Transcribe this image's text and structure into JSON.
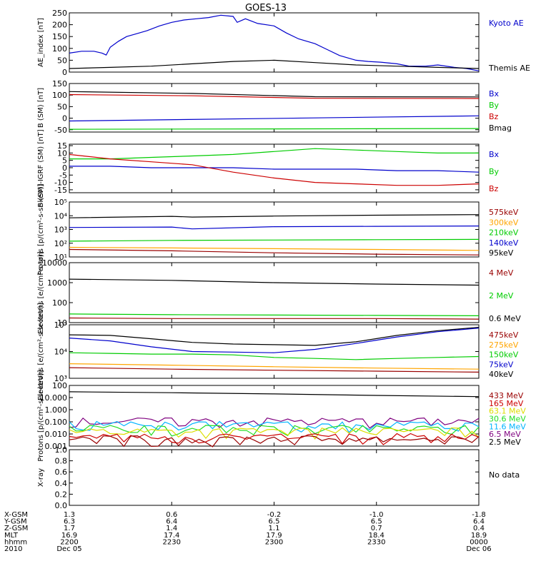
{
  "title": "GOES-13",
  "x_axis": {
    "tick_labels_bottom_row": [
      "Dec 05",
      "",
      "",
      "",
      "Dec 06"
    ],
    "rows": [
      {
        "label": "X-GSM",
        "values": [
          "1.3",
          "0.6",
          "-0.2",
          "-1.0",
          "-1.8"
        ]
      },
      {
        "label": "Y-GSM",
        "values": [
          "6.3",
          "6.4",
          "6.5",
          "6.5",
          "6.4"
        ]
      },
      {
        "label": "Z-GSM",
        "values": [
          "1.7",
          "1.4",
          "1.1",
          "0.7",
          "0.4"
        ]
      },
      {
        "label": "MLT",
        "values": [
          "16.9",
          "17.4",
          "17.9",
          "18.4",
          "18.9"
        ]
      },
      {
        "label": "hhmm",
        "values": [
          "2200",
          "2230",
          "2300",
          "2330",
          "0000"
        ]
      },
      {
        "label": "2010",
        "values": [
          "Dec 05",
          "",
          "",
          "",
          "Dec 06"
        ]
      }
    ]
  },
  "colors": {
    "black": "#000000",
    "blue": "#0000cc",
    "red": "#cc0000",
    "green": "#00cc00",
    "orange": "#ffa500",
    "darkred": "#990000",
    "cyan": "#00b4ff",
    "purple": "#7f007f",
    "yellow": "#dddd00",
    "lime": "#22dd22"
  },
  "chart_data": [
    {
      "type": "line",
      "ylabel": "AE_index [nT]",
      "ylim": [
        0,
        250
      ],
      "yticks": [
        "0",
        "50",
        "100",
        "150",
        "200",
        "250"
      ],
      "legend": [
        {
          "name": "Kyoto AE",
          "color": "#0000cc"
        },
        {
          "name": "Themis AE",
          "color": "#000000"
        }
      ],
      "series": [
        {
          "name": "Kyoto AE",
          "color": "#0000cc",
          "x": [
            0,
            3,
            6,
            8,
            9,
            10,
            12,
            14,
            16,
            19,
            22,
            25,
            28,
            31,
            34,
            37,
            40,
            41,
            43,
            46,
            50,
            53,
            56,
            60,
            63,
            66,
            70,
            73,
            76,
            80,
            83,
            87,
            90,
            94,
            97,
            100
          ],
          "y": [
            80,
            88,
            88,
            80,
            72,
            105,
            130,
            150,
            160,
            175,
            195,
            210,
            220,
            225,
            230,
            240,
            235,
            210,
            225,
            205,
            195,
            165,
            140,
            120,
            95,
            70,
            50,
            45,
            42,
            35,
            25,
            25,
            30,
            20,
            15,
            5
          ]
        },
        {
          "name": "Themis AE",
          "color": "#000000",
          "x": [
            0,
            10,
            20,
            30,
            40,
            50,
            60,
            70,
            80,
            90,
            100
          ],
          "y": [
            15,
            20,
            25,
            35,
            45,
            50,
            40,
            30,
            25,
            20,
            15
          ]
        }
      ]
    },
    {
      "type": "line",
      "ylabel": "B (SM) [nT]",
      "ylim": [
        -60,
        150
      ],
      "yticks": [
        "-50",
        "0",
        "50",
        "100",
        "150"
      ],
      "legend": [
        {
          "name": "Bx",
          "color": "#0000cc"
        },
        {
          "name": "By",
          "color": "#00cc00"
        },
        {
          "name": "Bz",
          "color": "#cc0000"
        },
        {
          "name": "Bmag",
          "color": "#000000"
        }
      ],
      "series": [
        {
          "name": "Bx",
          "color": "#0000cc",
          "x": [
            0,
            100
          ],
          "y": [
            -12,
            10
          ]
        },
        {
          "name": "By",
          "color": "#00cc00",
          "x": [
            0,
            100
          ],
          "y": [
            -48,
            -45
          ]
        },
        {
          "name": "Bz",
          "color": "#cc0000",
          "x": [
            0,
            30,
            60,
            100
          ],
          "y": [
            102,
            97,
            86,
            85
          ]
        },
        {
          "name": "Bmag",
          "color": "#000000",
          "x": [
            0,
            30,
            60,
            100
          ],
          "y": [
            115,
            107,
            93,
            92
          ]
        }
      ]
    },
    {
      "type": "line",
      "ylabel": "B (SM)-IGRF (SM) [nT]",
      "ylim": [
        -17,
        16
      ],
      "yticks": [
        "-15",
        "-10",
        "-5",
        "0",
        "5",
        "10",
        "15"
      ],
      "legend": [
        {
          "name": "Bx",
          "color": "#0000cc"
        },
        {
          "name": "By",
          "color": "#00cc00"
        },
        {
          "name": "Bz",
          "color": "#cc0000"
        }
      ],
      "series": [
        {
          "name": "Bx",
          "color": "#0000cc",
          "x": [
            0,
            10,
            20,
            30,
            40,
            50,
            60,
            70,
            80,
            90,
            100
          ],
          "y": [
            1,
            1,
            0,
            0,
            0,
            -1,
            -1,
            -1,
            -2,
            -2,
            -3
          ]
        },
        {
          "name": "By",
          "color": "#00cc00",
          "x": [
            0,
            10,
            20,
            30,
            40,
            50,
            60,
            70,
            80,
            90,
            100
          ],
          "y": [
            6,
            6,
            7,
            8,
            9,
            11,
            13,
            12,
            11,
            10,
            10
          ]
        },
        {
          "name": "Bz",
          "color": "#cc0000",
          "x": [
            0,
            10,
            20,
            30,
            40,
            50,
            60,
            70,
            80,
            90,
            100
          ],
          "y": [
            9,
            6,
            4,
            2,
            -3,
            -7,
            -10,
            -11,
            -12,
            -12,
            -11
          ]
        }
      ]
    },
    {
      "type": "line",
      "ylabel": "Protons [p/(cm²-s-sr-keV)]",
      "scale": "log",
      "ylim": [
        10,
        100000
      ],
      "yticks": [
        "10¹",
        "10²",
        "10³",
        "10⁴",
        "10⁵"
      ],
      "legend": [
        {
          "name": "575keV",
          "color": "#990000"
        },
        {
          "name": "300keV",
          "color": "#ffa500"
        },
        {
          "name": "210keV",
          "color": "#00cc00"
        },
        {
          "name": "140keV",
          "color": "#0000cc"
        },
        {
          "name": "95keV",
          "color": "#000000"
        }
      ],
      "series": [
        {
          "name": "95keV",
          "color": "#000000",
          "x": [
            0,
            25,
            30,
            50,
            75,
            100
          ],
          "y": [
            7000,
            9000,
            8000,
            9500,
            11000,
            12000
          ]
        },
        {
          "name": "140keV",
          "color": "#0000cc",
          "x": [
            0,
            25,
            30,
            50,
            75,
            100
          ],
          "y": [
            1400,
            1500,
            1100,
            1600,
            1700,
            1800
          ]
        },
        {
          "name": "210keV",
          "color": "#00cc00",
          "x": [
            0,
            25,
            50,
            75,
            100
          ],
          "y": [
            140,
            160,
            170,
            180,
            190
          ]
        },
        {
          "name": "300keV",
          "color": "#ffa500",
          "x": [
            0,
            25,
            50,
            75,
            100
          ],
          "y": [
            50,
            45,
            40,
            35,
            30
          ]
        },
        {
          "name": "575keV",
          "color": "#990000",
          "x": [
            0,
            25,
            50,
            75,
            100
          ],
          "y": [
            35,
            28,
            20,
            16,
            14
          ]
        }
      ]
    },
    {
      "type": "line",
      "ylabel": "Electrons [e/(cm²-s-sr)]",
      "scale": "log",
      "ylim": [
        10,
        10000
      ],
      "yticks": [
        "10",
        "100",
        "1000",
        "10000"
      ],
      "legend": [
        {
          "name": "4 MeV",
          "color": "#990000"
        },
        {
          "name": "2 MeV",
          "color": "#00cc00"
        },
        {
          "name": "0.6 MeV",
          "color": "#000000"
        }
      ],
      "series": [
        {
          "name": "0.6 MeV",
          "color": "#000000",
          "x": [
            0,
            25,
            50,
            75,
            100
          ],
          "y": [
            1500,
            1300,
            1000,
            850,
            750
          ]
        },
        {
          "name": "2 MeV",
          "color": "#00cc00",
          "x": [
            0,
            25,
            50,
            75,
            100
          ],
          "y": [
            27,
            25,
            24,
            23,
            22
          ]
        },
        {
          "name": "4 MeV",
          "color": "#990000",
          "x": [
            0,
            25,
            50,
            75,
            100
          ],
          "y": [
            17,
            16,
            16,
            16,
            15
          ]
        }
      ]
    },
    {
      "type": "line",
      "ylabel": "Electrons [e/(cm²-s-sr-keV)]",
      "scale": "log",
      "ylim": [
        1000,
        100000
      ],
      "yticks": [
        "10³",
        "10⁴",
        "10⁵"
      ],
      "legend": [
        {
          "name": "475keV",
          "color": "#990000"
        },
        {
          "name": "275keV",
          "color": "#ffa500"
        },
        {
          "name": "150keV",
          "color": "#00cc00"
        },
        {
          "name": "75keV",
          "color": "#0000cc"
        },
        {
          "name": "40keV",
          "color": "#000000"
        }
      ],
      "series": [
        {
          "name": "40keV",
          "color": "#000000",
          "x": [
            0,
            10,
            20,
            30,
            40,
            50,
            60,
            70,
            80,
            90,
            100
          ],
          "y": [
            42000,
            40000,
            30000,
            22000,
            19000,
            18000,
            17000,
            23000,
            40000,
            60000,
            80000
          ]
        },
        {
          "name": "75keV",
          "color": "#0000cc",
          "x": [
            0,
            10,
            20,
            30,
            40,
            50,
            60,
            70,
            80,
            90,
            100
          ],
          "y": [
            32000,
            25000,
            15000,
            10000,
            9500,
            9000,
            12000,
            20000,
            35000,
            55000,
            75000
          ]
        },
        {
          "name": "150keV",
          "color": "#00cc00",
          "x": [
            0,
            10,
            20,
            30,
            40,
            50,
            60,
            70,
            80,
            90,
            100
          ],
          "y": [
            9000,
            8500,
            8000,
            8000,
            7500,
            6000,
            5500,
            5000,
            5500,
            6000,
            6500
          ]
        },
        {
          "name": "275keV",
          "color": "#ffa500",
          "x": [
            0,
            25,
            50,
            75,
            100
          ],
          "y": [
            3500,
            3100,
            2700,
            2400,
            2200
          ]
        },
        {
          "name": "475keV",
          "color": "#990000",
          "x": [
            0,
            25,
            50,
            75,
            100
          ],
          "y": [
            2500,
            2200,
            2000,
            1850,
            1700
          ]
        }
      ]
    },
    {
      "type": "line",
      "ylabel": "Protons [p/(cm²-s-sr-keV)]",
      "scale": "log",
      "ylim": [
        0.001,
        100
      ],
      "yticks": [
        "0.001",
        "0.010",
        "0.100",
        "1.000",
        "10.000",
        "100"
      ],
      "legend": [
        {
          "name": "433 MeV",
          "color": "#990000"
        },
        {
          "name": "165 MeV",
          "color": "#cc0000"
        },
        {
          "name": "63.1 MeV",
          "color": "#dddd00"
        },
        {
          "name": "30.6 MeV",
          "color": "#22dd22"
        },
        {
          "name": "11.6 MeV",
          "color": "#00b4ff"
        },
        {
          "name": "6.5 MeV",
          "color": "#7f007f"
        },
        {
          "name": "2.5 MeV",
          "color": "#000000"
        }
      ],
      "series": [
        {
          "name": "2.5 MeV",
          "color": "#000000",
          "x": [
            0,
            25,
            50,
            75,
            100
          ],
          "y": [
            30,
            25,
            20,
            15,
            12
          ]
        },
        {
          "name": "6.5 MeV",
          "color": "#7f007f",
          "noisy": true,
          "base": 0.12,
          "x": [
            0,
            100
          ],
          "y": [
            0.12,
            0.12
          ]
        },
        {
          "name": "11.6 MeV",
          "color": "#00b4ff",
          "noisy": true,
          "base": 0.06,
          "x": [
            0,
            100
          ],
          "y": [
            0.06,
            0.06
          ]
        },
        {
          "name": "30.6 MeV",
          "color": "#22dd22",
          "noisy": true,
          "base": 0.03,
          "x": [
            0,
            100
          ],
          "y": [
            0.03,
            0.03
          ]
        },
        {
          "name": "63.1 MeV",
          "color": "#dddd00",
          "noisy": true,
          "base": 0.018,
          "x": [
            0,
            100
          ],
          "y": [
            0.018,
            0.018
          ]
        },
        {
          "name": "165 MeV",
          "color": "#cc0000",
          "noisy": true,
          "base": 0.006,
          "x": [
            0,
            100
          ],
          "y": [
            0.006,
            0.006
          ]
        },
        {
          "name": "433 MeV",
          "color": "#990000",
          "noisy": true,
          "base": 0.004,
          "x": [
            0,
            100
          ],
          "y": [
            0.004,
            0.004
          ]
        }
      ]
    },
    {
      "type": "line",
      "ylabel": "X-ray",
      "ylim": [
        0,
        1
      ],
      "yticks": [
        "0.0",
        "0.2",
        "0.4",
        "0.6",
        "0.8",
        "1.0"
      ],
      "legend": [
        {
          "name": "No data",
          "color": "#000000"
        }
      ],
      "series": []
    }
  ]
}
